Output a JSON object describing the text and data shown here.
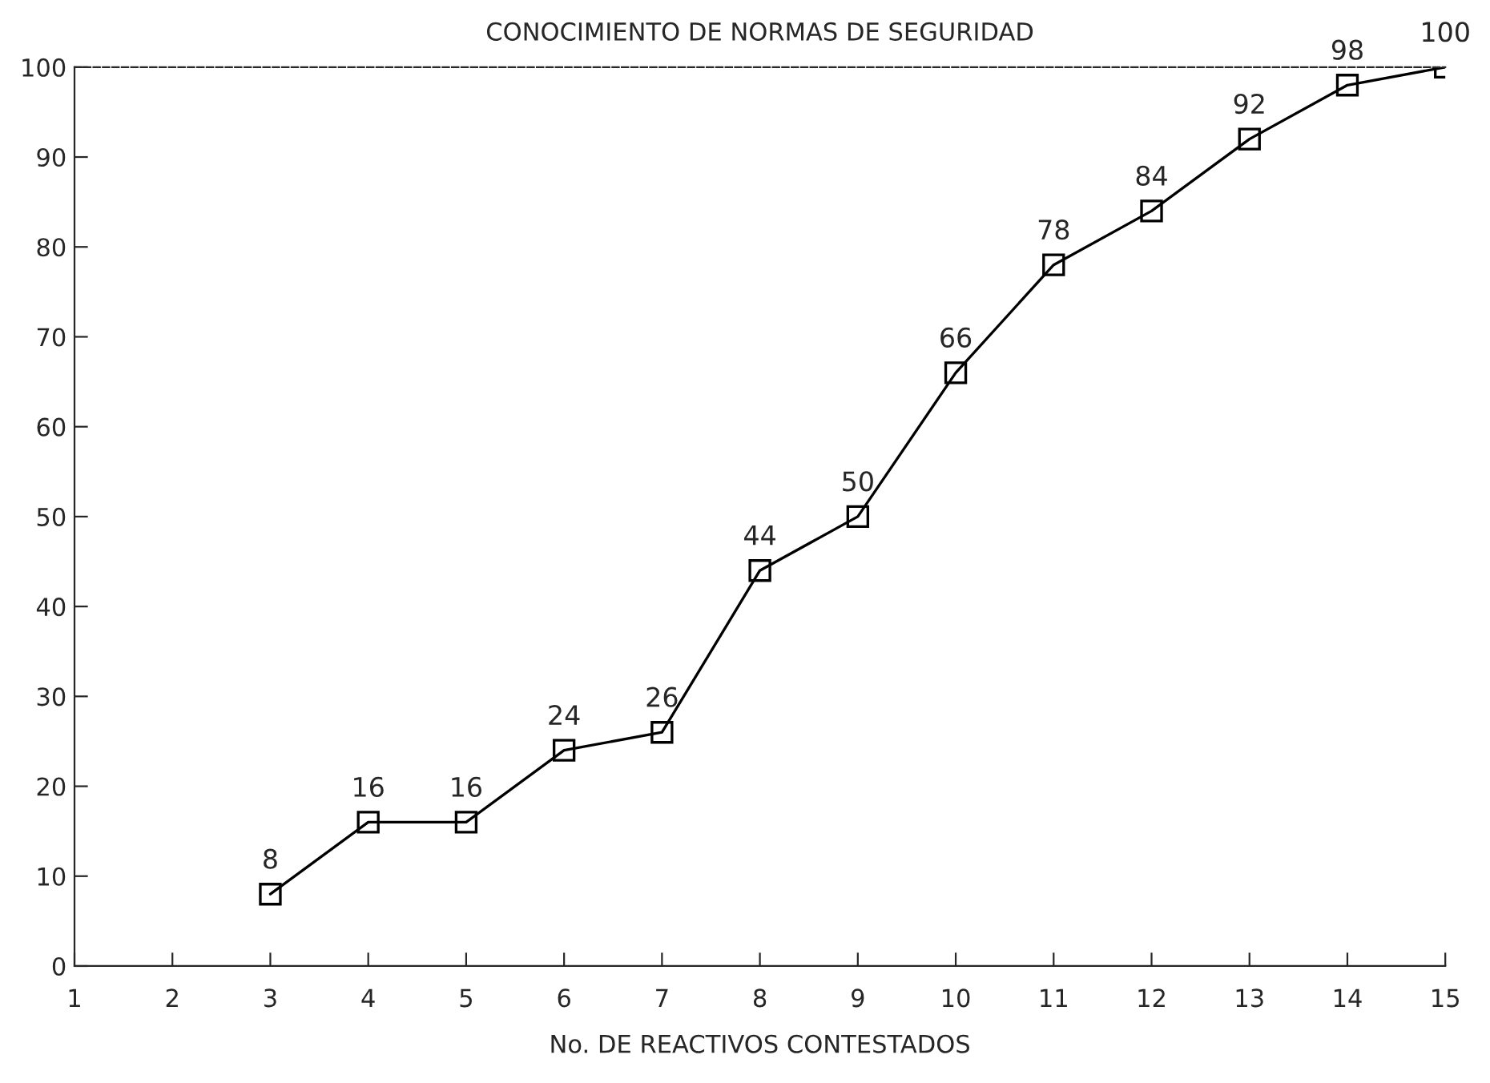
{
  "chart_data": {
    "type": "line",
    "title": "CONOCIMIENTO DE NORMAS DE SEGURIDAD",
    "xlabel": "No. DE REACTIVOS CONTESTADOS",
    "x": [
      3,
      4,
      5,
      6,
      7,
      8,
      9,
      10,
      11,
      12,
      13,
      14,
      15
    ],
    "series": [
      {
        "color": "#000000",
        "values": [
          8,
          16,
          16,
          24,
          26,
          44,
          50,
          66,
          78,
          84,
          92,
          98,
          100
        ]
      }
    ],
    "data_labels": true,
    "marker": "square",
    "line_style": "solid",
    "xlim": [
      1,
      15
    ],
    "xticks": [
      1,
      2,
      3,
      4,
      5,
      6,
      7,
      8,
      9,
      10,
      11,
      12,
      13,
      14,
      15
    ],
    "ylim": [
      0,
      100
    ],
    "yticks": [
      0,
      10,
      20,
      30,
      40,
      50,
      60,
      70,
      80,
      90,
      100
    ],
    "grid": false
  }
}
